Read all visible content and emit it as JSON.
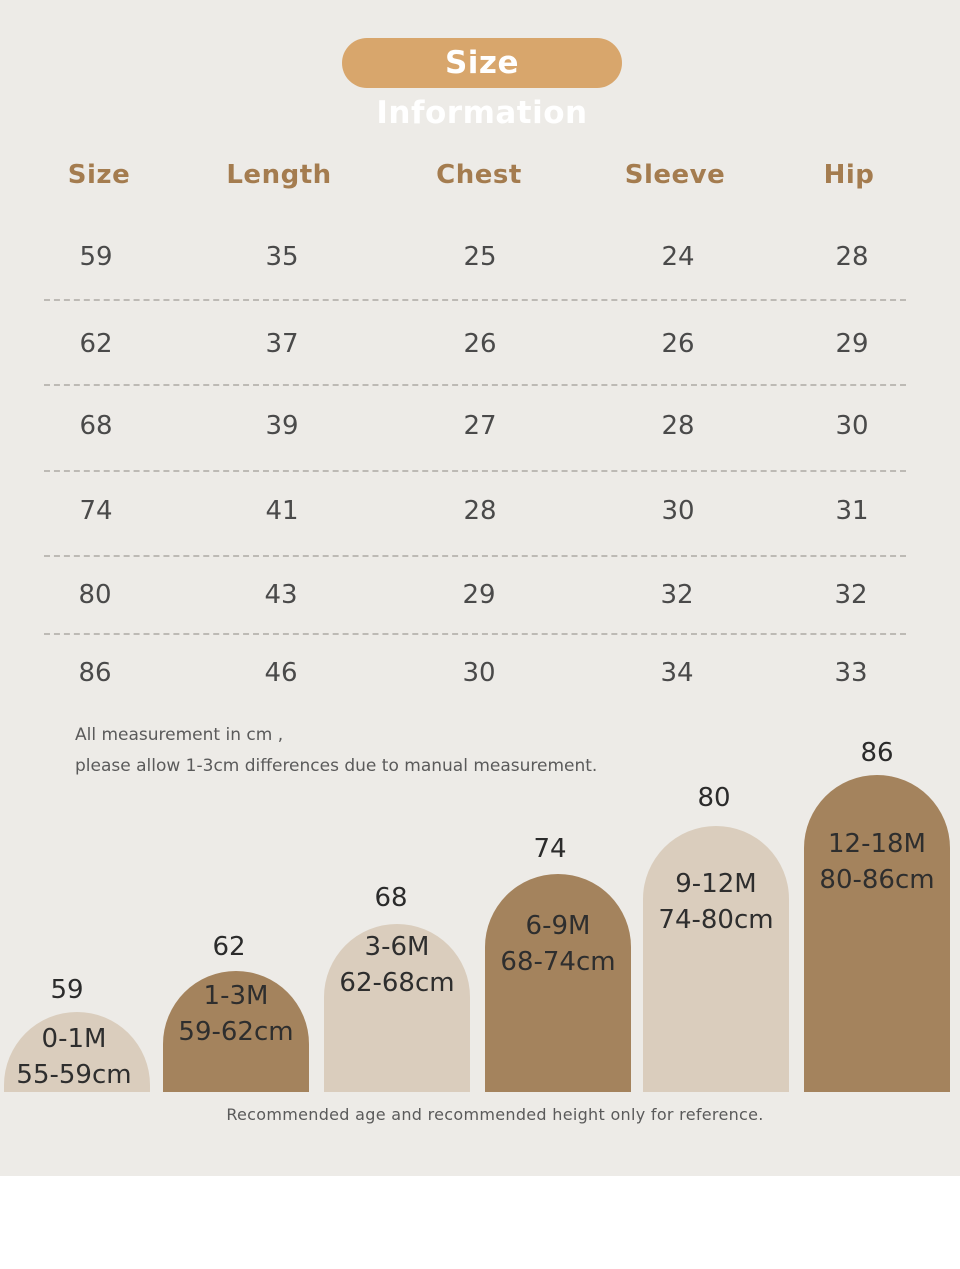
{
  "title": "Size Information",
  "table": {
    "headers": [
      "Size",
      "Length",
      "Chest",
      "Sleeve",
      "Hip"
    ],
    "rows": [
      [
        "59",
        "35",
        "25",
        "24",
        "28"
      ],
      [
        "62",
        "37",
        "26",
        "26",
        "29"
      ],
      [
        "68",
        "39",
        "27",
        "28",
        "30"
      ],
      [
        "74",
        "41",
        "28",
        "30",
        "31"
      ],
      [
        "80",
        "43",
        "29",
        "32",
        "32"
      ],
      [
        "86",
        "46",
        "30",
        "34",
        "33"
      ]
    ]
  },
  "notes": {
    "line1": "All measurement in cm ,",
    "line2": "please allow 1-3cm differences due to manual measurement."
  },
  "chart": {
    "sizes": [
      {
        "size": "59",
        "age": "0-1M",
        "height": "55-59cm",
        "tone": "light"
      },
      {
        "size": "62",
        "age": "1-3M",
        "height": "59-62cm",
        "tone": "dark"
      },
      {
        "size": "68",
        "age": "3-6M",
        "height": "62-68cm",
        "tone": "light"
      },
      {
        "size": "74",
        "age": "6-9M",
        "height": "68-74cm",
        "tone": "dark"
      },
      {
        "size": "80",
        "age": "9-12M",
        "height": "74-80cm",
        "tone": "light"
      },
      {
        "size": "86",
        "age": "12-18M",
        "height": "80-86cm",
        "tone": "dark"
      }
    ],
    "colors": {
      "light": "#dacdbd",
      "dark": "#a4835d"
    }
  },
  "footer": "Recommended age and recommended height only for reference."
}
